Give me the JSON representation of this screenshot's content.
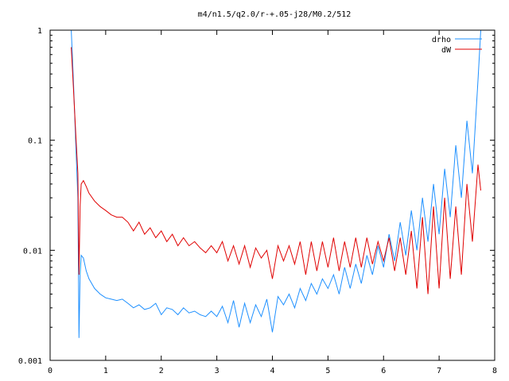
{
  "chart_data": {
    "type": "line",
    "title": "m4/n1.5/q2.0/r-+.05-j28/M0.2/512",
    "xlabel": "",
    "ylabel": "",
    "xlim": [
      0,
      8
    ],
    "ylim": [
      0.001,
      1
    ],
    "yscale": "log",
    "grid": false,
    "legend_position": "top-right",
    "x_ticks": [
      0,
      1,
      2,
      3,
      4,
      5,
      6,
      7,
      8
    ],
    "x_tick_labels": [
      "0",
      "1",
      "2",
      "3",
      "4",
      "5",
      "6",
      "7",
      "8"
    ],
    "y_ticks": [
      0.001,
      0.01,
      0.1,
      1
    ],
    "y_tick_labels": [
      "0.001",
      "0.01",
      "0.1",
      "1"
    ],
    "series": [
      {
        "name": "drho",
        "color": "#1e90ff",
        "x": [
          0.38,
          0.42,
          0.46,
          0.5,
          0.52,
          0.54,
          0.56,
          0.6,
          0.65,
          0.7,
          0.8,
          0.9,
          1.0,
          1.1,
          1.2,
          1.3,
          1.4,
          1.5,
          1.6,
          1.7,
          1.8,
          1.9,
          2.0,
          2.1,
          2.2,
          2.3,
          2.4,
          2.5,
          2.6,
          2.7,
          2.8,
          2.9,
          3.0,
          3.1,
          3.2,
          3.3,
          3.4,
          3.5,
          3.6,
          3.7,
          3.8,
          3.9,
          4.0,
          4.1,
          4.2,
          4.3,
          4.4,
          4.5,
          4.6,
          4.7,
          4.8,
          4.9,
          5.0,
          5.1,
          5.2,
          5.3,
          5.4,
          5.5,
          5.6,
          5.7,
          5.8,
          5.9,
          6.0,
          6.1,
          6.2,
          6.3,
          6.4,
          6.5,
          6.6,
          6.7,
          6.8,
          6.9,
          7.0,
          7.1,
          7.2,
          7.3,
          7.4,
          7.5,
          7.6,
          7.7,
          7.75
        ],
        "y": [
          1.0,
          0.35,
          0.1,
          0.03,
          0.0016,
          0.006,
          0.009,
          0.0085,
          0.0065,
          0.0055,
          0.0045,
          0.004,
          0.0037,
          0.0036,
          0.0035,
          0.0036,
          0.0033,
          0.003,
          0.0032,
          0.0029,
          0.003,
          0.0033,
          0.0026,
          0.003,
          0.0029,
          0.0026,
          0.003,
          0.0027,
          0.0028,
          0.0026,
          0.0025,
          0.0028,
          0.0025,
          0.0031,
          0.0022,
          0.0035,
          0.002,
          0.0033,
          0.0022,
          0.0032,
          0.0025,
          0.0036,
          0.0018,
          0.0038,
          0.0032,
          0.004,
          0.003,
          0.0045,
          0.0035,
          0.005,
          0.004,
          0.0055,
          0.0045,
          0.006,
          0.004,
          0.007,
          0.0045,
          0.0075,
          0.005,
          0.009,
          0.006,
          0.011,
          0.007,
          0.014,
          0.008,
          0.018,
          0.009,
          0.023,
          0.01,
          0.03,
          0.012,
          0.04,
          0.014,
          0.055,
          0.02,
          0.09,
          0.03,
          0.15,
          0.05,
          0.35,
          1.0
        ]
      },
      {
        "name": "dW",
        "color": "#e00000",
        "x": [
          0.38,
          0.42,
          0.46,
          0.5,
          0.52,
          0.54,
          0.56,
          0.6,
          0.65,
          0.7,
          0.8,
          0.9,
          1.0,
          1.1,
          1.2,
          1.3,
          1.4,
          1.5,
          1.6,
          1.7,
          1.8,
          1.9,
          2.0,
          2.1,
          2.2,
          2.3,
          2.4,
          2.5,
          2.6,
          2.7,
          2.8,
          2.9,
          3.0,
          3.1,
          3.2,
          3.3,
          3.4,
          3.5,
          3.6,
          3.7,
          3.8,
          3.9,
          4.0,
          4.1,
          4.2,
          4.3,
          4.4,
          4.5,
          4.6,
          4.7,
          4.8,
          4.9,
          5.0,
          5.1,
          5.2,
          5.3,
          5.4,
          5.5,
          5.6,
          5.7,
          5.8,
          5.9,
          6.0,
          6.1,
          6.2,
          6.3,
          6.4,
          6.5,
          6.6,
          6.7,
          6.8,
          6.9,
          7.0,
          7.1,
          7.2,
          7.3,
          7.4,
          7.5,
          7.6,
          7.7,
          7.75
        ],
        "y": [
          0.7,
          0.3,
          0.12,
          0.05,
          0.006,
          0.025,
          0.04,
          0.043,
          0.038,
          0.033,
          0.028,
          0.025,
          0.023,
          0.021,
          0.02,
          0.02,
          0.018,
          0.015,
          0.018,
          0.014,
          0.016,
          0.013,
          0.015,
          0.012,
          0.014,
          0.011,
          0.013,
          0.011,
          0.012,
          0.0105,
          0.0095,
          0.011,
          0.0095,
          0.012,
          0.008,
          0.011,
          0.0075,
          0.011,
          0.007,
          0.0105,
          0.0085,
          0.01,
          0.0055,
          0.011,
          0.008,
          0.011,
          0.0075,
          0.012,
          0.006,
          0.012,
          0.0065,
          0.012,
          0.007,
          0.013,
          0.0065,
          0.012,
          0.007,
          0.013,
          0.007,
          0.013,
          0.0075,
          0.012,
          0.008,
          0.013,
          0.0065,
          0.013,
          0.006,
          0.015,
          0.0045,
          0.02,
          0.004,
          0.025,
          0.0045,
          0.03,
          0.0055,
          0.025,
          0.006,
          0.04,
          0.012,
          0.06,
          0.035
        ]
      }
    ]
  }
}
